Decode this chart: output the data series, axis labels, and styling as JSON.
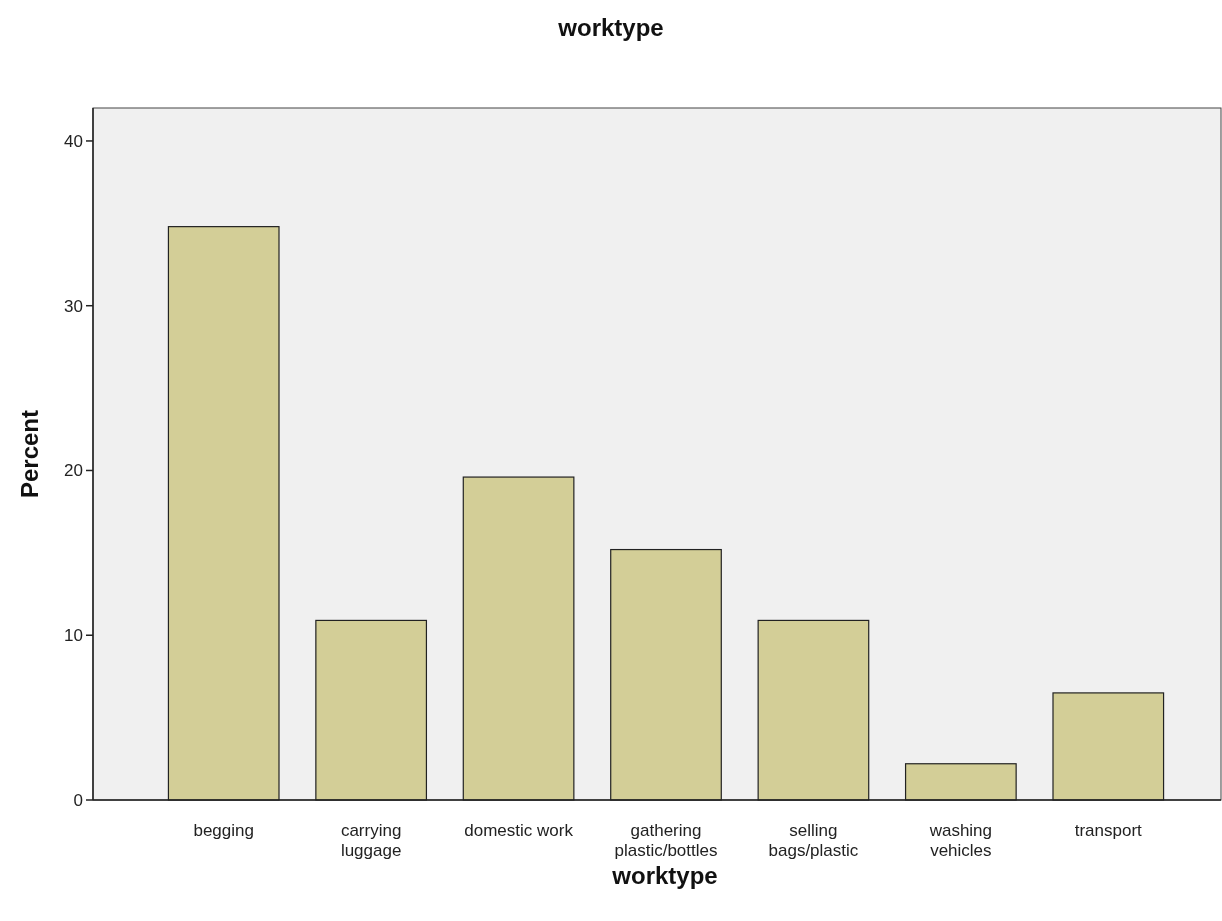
{
  "chart_data": {
    "type": "bar",
    "title": "worktype",
    "xlabel": "worktype",
    "ylabel": "Percent",
    "categories": [
      "begging",
      "carrying luggage",
      "domestic work",
      "gathering plastic/bottles",
      "selling bags/plastic",
      "washing vehicles",
      "transport"
    ],
    "values": [
      34.8,
      10.9,
      19.6,
      15.2,
      10.9,
      2.2,
      6.5
    ],
    "color": "#d3ce97",
    "ylim": [
      0,
      42
    ],
    "yticks": [
      0,
      10,
      20,
      30,
      40
    ],
    "grid": false
  }
}
